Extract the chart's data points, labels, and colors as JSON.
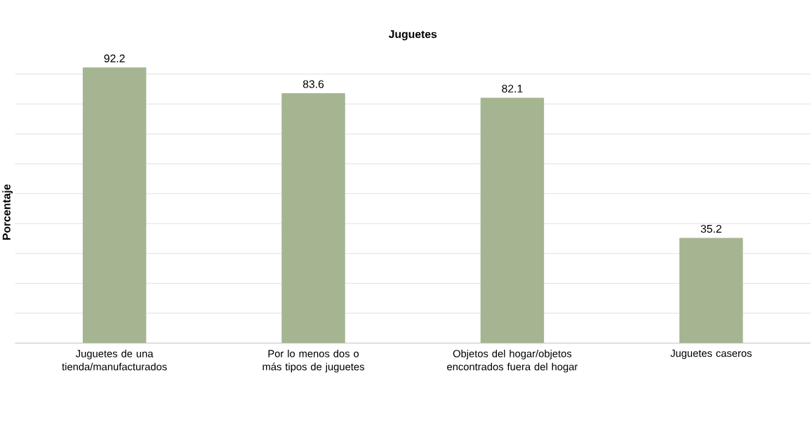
{
  "chart_data": {
    "type": "bar",
    "title": "Juguetes",
    "ylabel": "Porcentaje",
    "categories": [
      "Juguetes de una tienda/manufacturados",
      "Por lo menos dos o más tipos de juguetes",
      "Objetos del hogar/objetos encontrados fuera del hogar",
      "Juguetes caseros"
    ],
    "values": [
      92.2,
      83.6,
      82.1,
      35.2
    ],
    "color": "#a5b592",
    "grid": "y",
    "data_labels": true,
    "tick_labels": "x"
  }
}
